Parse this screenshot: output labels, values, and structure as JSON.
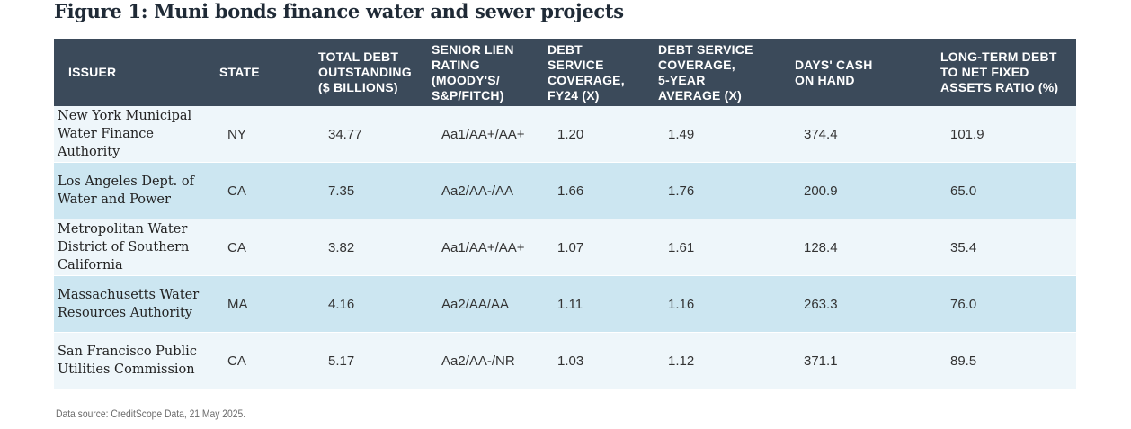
{
  "title": "Figure 1: Muni bonds finance water and sewer projects",
  "chart_data": {
    "type": "table",
    "columns": [
      "ISSUER",
      "STATE",
      "TOTAL DEBT\nOUTSTANDING\n($ BILLIONS)",
      "SENIOR LIEN\nRATING\n(MOODY'S/\nS&P/FITCH)",
      "DEBT\nSERVICE\nCOVERAGE,\nFY24 (X)",
      "DEBT SERVICE\nCOVERAGE,\n5-YEAR\nAVERAGE (X)",
      "DAYS' CASH\nON HAND",
      "LONG-TERM DEBT\nTO NET FIXED\nASSETS RATIO (%)"
    ],
    "rows": [
      [
        "New York Municipal\nWater Finance\nAuthority",
        "NY",
        "34.77",
        "Aa1/AA+/AA+",
        "1.20",
        "1.49",
        "374.4",
        "101.9"
      ],
      [
        "Los Angeles Dept. of\nWater and Power",
        "CA",
        "7.35",
        "Aa2/AA-/AA",
        "1.66",
        "1.76",
        "200.9",
        "65.0"
      ],
      [
        "Metropolitan Water\nDistrict of Southern\nCalifornia",
        "CA",
        "3.82",
        "Aa1/AA+/AA+",
        "1.07",
        "1.61",
        "128.4",
        "35.4"
      ],
      [
        "Massachusetts Water\nResources Authority",
        "MA",
        "4.16",
        "Aa2/AA/AA",
        "1.11",
        "1.16",
        "263.3",
        "76.0"
      ],
      [
        "San Francisco Public\nUtilities Commission",
        "CA",
        "5.17",
        "Aa2/AA-/NR",
        "1.03",
        "1.12",
        "371.1",
        "89.5"
      ]
    ]
  },
  "source": "Data source: CreditScope Data, 21 May 2025.",
  "colors": {
    "header_bg": "#3b4a5a",
    "row_light": "#eef6fa",
    "row_dark": "#cce6f1"
  }
}
